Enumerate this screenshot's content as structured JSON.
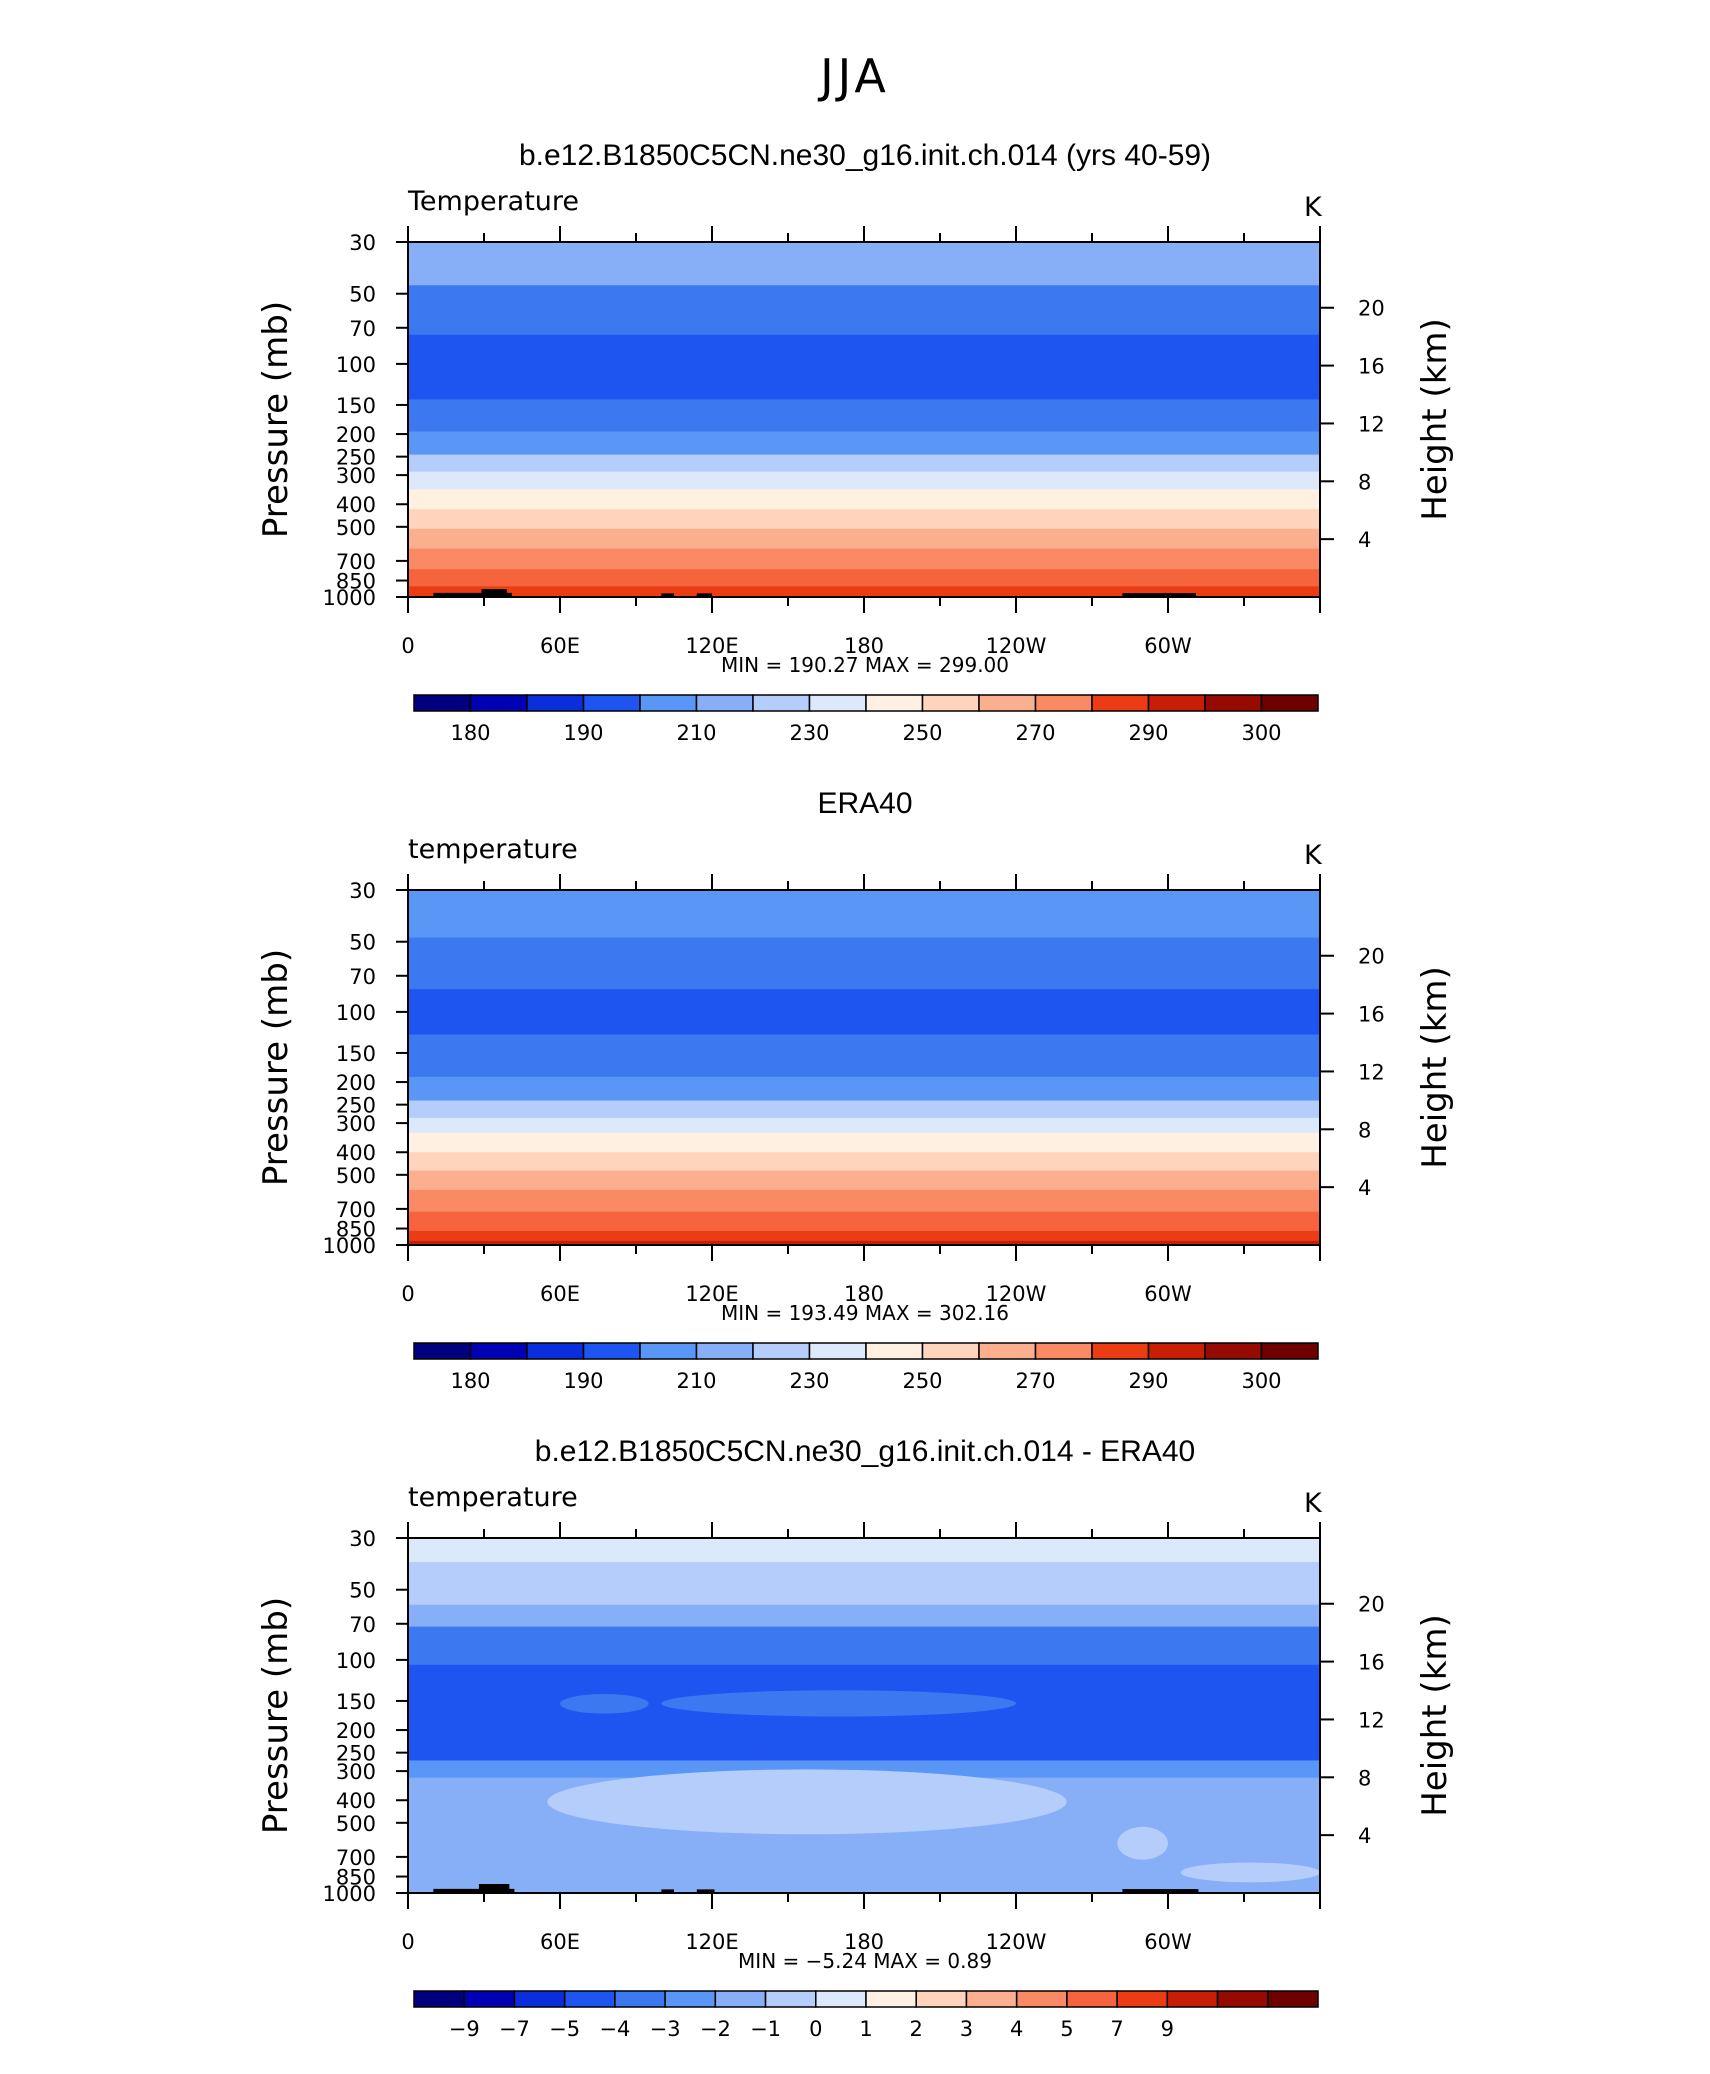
{
  "figure": {
    "title": "JJA"
  },
  "colormaps": {
    "temperature": [
      "#00007f",
      "#0000b4",
      "#0a2edc",
      "#1e55f0",
      "#3c78f0",
      "#5a96f5",
      "#87aff8",
      "#b4cdfa",
      "#dce9fa",
      "#fff0e1",
      "#fed4bc",
      "#fcaf8f",
      "#f98a64",
      "#f5643c",
      "#eb3c14",
      "#c81e05",
      "#960a00",
      "#6e0000"
    ],
    "difference": [
      "#00007f",
      "#0000b4",
      "#0a2edc",
      "#1e55f0",
      "#3c78f0",
      "#5a96f5",
      "#87aff8",
      "#b4cdfa",
      "#dce9fa",
      "#fff0e1",
      "#fed4bc",
      "#fcaf8f",
      "#f98a64",
      "#f5643c",
      "#eb3c14",
      "#c81e05",
      "#960a00",
      "#6e0000"
    ]
  },
  "chart_data": [
    {
      "type": "heatmap",
      "title": "b.e12.B1850C5CN.ne30_g16.init.ch.014 (yrs 40-59)",
      "variable_label": "Temperature",
      "units_label": "K",
      "ylabel": "Pressure  (mb)",
      "ylabel_right": "Height  (km)",
      "x_ticks": [
        "0",
        "60E",
        "120E",
        "180",
        "120W",
        "60W"
      ],
      "y_ticks": [
        "30",
        "50",
        "70",
        "100",
        "150",
        "200",
        "250",
        "300",
        "400",
        "500",
        "700",
        "850",
        "1000"
      ],
      "y_right_ticks": [
        "20",
        "16",
        "12",
        "8",
        "4"
      ],
      "y_scale": "log",
      "ylim": [
        1000,
        30
      ],
      "xlim": [
        0,
        360
      ],
      "min_max_text": "MIN  =  190.27   MAX  =  299.00",
      "min": 190.27,
      "max": 299.0,
      "colorbar_labels": [
        "180",
        "190",
        "210",
        "230",
        "250",
        "270",
        "290",
        "300"
      ],
      "colormap": "temperature",
      "bands": [
        {
          "p_top": 30,
          "p_bot": 46,
          "color_index": 6
        },
        {
          "p_top": 46,
          "p_bot": 75,
          "color_index": 4
        },
        {
          "p_top": 75,
          "p_bot": 142,
          "color_index": 3
        },
        {
          "p_top": 142,
          "p_bot": 195,
          "color_index": 4
        },
        {
          "p_top": 195,
          "p_bot": 245,
          "color_index": 5
        },
        {
          "p_top": 245,
          "p_bot": 290,
          "color_index": 7
        },
        {
          "p_top": 290,
          "p_bot": 345,
          "color_index": 8
        },
        {
          "p_top": 345,
          "p_bot": 420,
          "color_index": 9
        },
        {
          "p_top": 420,
          "p_bot": 510,
          "color_index": 10
        },
        {
          "p_top": 510,
          "p_bot": 620,
          "color_index": 11
        },
        {
          "p_top": 620,
          "p_bot": 760,
          "color_index": 12
        },
        {
          "p_top": 760,
          "p_bot": 900,
          "color_index": 13
        },
        {
          "p_top": 900,
          "p_bot": 1000,
          "color_index": 14
        }
      ],
      "topography": [
        {
          "lon_start": 10,
          "lon_end": 41,
          "p_top": 960
        },
        {
          "lon_start": 29,
          "lon_end": 39,
          "p_top": 925
        },
        {
          "lon_start": 100,
          "lon_end": 105,
          "p_top": 965
        },
        {
          "lon_start": 114,
          "lon_end": 120,
          "p_top": 965
        },
        {
          "lon_start": 282,
          "lon_end": 311,
          "p_top": 962
        }
      ]
    },
    {
      "type": "heatmap",
      "title": "ERA40",
      "variable_label": "temperature",
      "units_label": "K",
      "ylabel": "Pressure  (mb)",
      "ylabel_right": "Height  (km)",
      "x_ticks": [
        "0",
        "60E",
        "120E",
        "180",
        "120W",
        "60W"
      ],
      "y_ticks": [
        "30",
        "50",
        "70",
        "100",
        "150",
        "200",
        "250",
        "300",
        "400",
        "500",
        "700",
        "850",
        "1000"
      ],
      "y_right_ticks": [
        "20",
        "16",
        "12",
        "8",
        "4"
      ],
      "y_scale": "log",
      "ylim": [
        1000,
        30
      ],
      "xlim": [
        0,
        360
      ],
      "min_max_text": "MIN  =  193.49   MAX  =  302.16",
      "min": 193.49,
      "max": 302.16,
      "colorbar_labels": [
        "180",
        "190",
        "210",
        "230",
        "250",
        "270",
        "290",
        "300"
      ],
      "colormap": "temperature",
      "bands": [
        {
          "p_top": 30,
          "p_bot": 48,
          "color_index": 5
        },
        {
          "p_top": 48,
          "p_bot": 80,
          "color_index": 4
        },
        {
          "p_top": 80,
          "p_bot": 125,
          "color_index": 3
        },
        {
          "p_top": 125,
          "p_bot": 190,
          "color_index": 4
        },
        {
          "p_top": 190,
          "p_bot": 240,
          "color_index": 5
        },
        {
          "p_top": 240,
          "p_bot": 285,
          "color_index": 7
        },
        {
          "p_top": 285,
          "p_bot": 330,
          "color_index": 8
        },
        {
          "p_top": 330,
          "p_bot": 400,
          "color_index": 9
        },
        {
          "p_top": 400,
          "p_bot": 480,
          "color_index": 10
        },
        {
          "p_top": 480,
          "p_bot": 580,
          "color_index": 11
        },
        {
          "p_top": 580,
          "p_bot": 720,
          "color_index": 12
        },
        {
          "p_top": 720,
          "p_bot": 870,
          "color_index": 13
        },
        {
          "p_top": 870,
          "p_bot": 960,
          "color_index": 14
        },
        {
          "p_top": 960,
          "p_bot": 1000,
          "color_index": 15
        }
      ],
      "topography": []
    },
    {
      "type": "heatmap",
      "title": "b.e12.B1850C5CN.ne30_g16.init.ch.014 - ERA40",
      "variable_label": "temperature",
      "units_label": "K",
      "ylabel": "Pressure  (mb)",
      "ylabel_right": "Height  (km)",
      "x_ticks": [
        "0",
        "60E",
        "120E",
        "180",
        "120W",
        "60W"
      ],
      "y_ticks": [
        "30",
        "50",
        "70",
        "100",
        "150",
        "200",
        "250",
        "300",
        "400",
        "500",
        "700",
        "850",
        "1000"
      ],
      "y_right_ticks": [
        "20",
        "16",
        "12",
        "8",
        "4"
      ],
      "y_scale": "log",
      "ylim": [
        1000,
        30
      ],
      "xlim": [
        0,
        360
      ],
      "min_max_text": "MIN  =   −5.24   MAX  =     0.89",
      "min": -5.24,
      "max": 0.89,
      "colorbar_labels": [
        "−9",
        "−7",
        "−5",
        "−4",
        "−3",
        "−2",
        "−1",
        "0",
        "1",
        "2",
        "3",
        "4",
        "5",
        "7",
        "9"
      ],
      "colormap": "difference",
      "bands": [
        {
          "p_top": 30,
          "p_bot": 38,
          "color_index": 8
        },
        {
          "p_top": 38,
          "p_bot": 58,
          "color_index": 7
        },
        {
          "p_top": 58,
          "p_bot": 72,
          "color_index": 6
        },
        {
          "p_top": 72,
          "p_bot": 105,
          "color_index": 4
        },
        {
          "p_top": 105,
          "p_bot": 270,
          "color_index": 3
        },
        {
          "p_top": 270,
          "p_bot": 320,
          "color_index": 5
        },
        {
          "p_top": 320,
          "p_bot": 1000,
          "color_index": 6
        }
      ],
      "blobs": [
        {
          "lon_start": 55,
          "lon_end": 260,
          "p_top": 295,
          "p_bot": 560,
          "color_index": 7
        },
        {
          "lon_start": 100,
          "lon_end": 240,
          "p_top": 135,
          "p_bot": 175,
          "color_index": 4
        },
        {
          "lon_start": 60,
          "lon_end": 95,
          "p_top": 140,
          "p_bot": 170,
          "color_index": 4
        },
        {
          "lon_start": 305,
          "lon_end": 360,
          "p_top": 740,
          "p_bot": 900,
          "color_index": 7
        },
        {
          "lon_start": 280,
          "lon_end": 300,
          "p_top": 520,
          "p_bot": 720,
          "color_index": 7
        }
      ],
      "topography": [
        {
          "lon_start": 10,
          "lon_end": 42,
          "p_top": 960
        },
        {
          "lon_start": 28,
          "lon_end": 40,
          "p_top": 915
        },
        {
          "lon_start": 100,
          "lon_end": 105,
          "p_top": 965
        },
        {
          "lon_start": 114,
          "lon_end": 121,
          "p_top": 965
        },
        {
          "lon_start": 282,
          "lon_end": 312,
          "p_top": 962
        }
      ]
    }
  ]
}
